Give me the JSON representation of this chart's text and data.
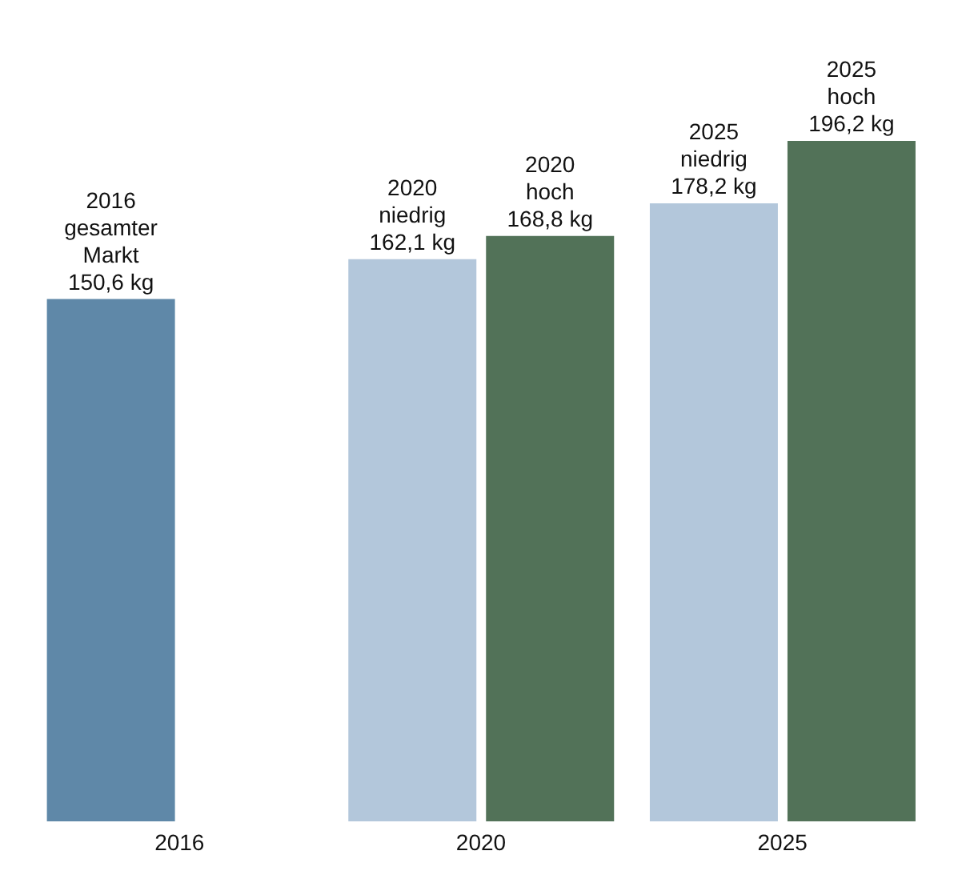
{
  "chart_data": {
    "type": "bar",
    "categories": [
      "2016",
      "2020",
      "2025"
    ],
    "series": [
      {
        "color": "#5f88a8",
        "colors": [
          "#5f88a8",
          "#b3c7db",
          "#b3c7db"
        ],
        "values": [
          150.6,
          162.1,
          178.2
        ],
        "value_labels": [
          "2016\ngesamter\nMarkt\n150,6 kg",
          "2020\nniedrig\n162,1 kg",
          "2025\nniedrig\n178,2 kg"
        ]
      },
      {
        "color": "#527258",
        "values": [
          null,
          168.8,
          196.2
        ],
        "value_labels": [
          null,
          "2020\nhoch\n168,8 kg",
          "2025\nhoch\n196,2 kg"
        ]
      }
    ],
    "grid": false,
    "legend": false
  }
}
